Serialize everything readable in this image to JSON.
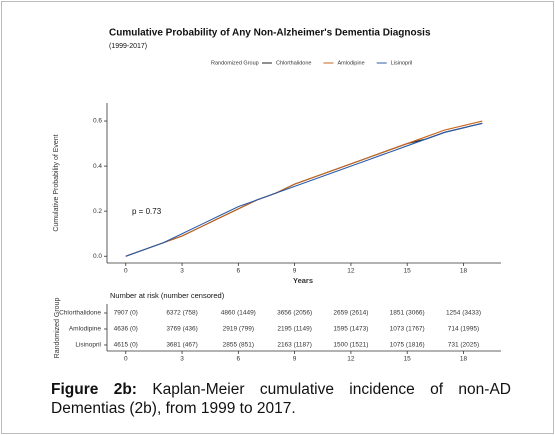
{
  "chart_data": {
    "type": "line",
    "title": "Cumulative Probability of Any Non-Alzheimer's Dementia Diagnosis",
    "subtitle": "(1999-2017)",
    "xlabel": "Years",
    "ylabel": "Cumulative Probability of Event",
    "legend_title": "Randomized Group",
    "annotation": "p = 0.73",
    "x": [
      0,
      1,
      2,
      3,
      4,
      5,
      6,
      7,
      8,
      9,
      10,
      11,
      12,
      13,
      14,
      15,
      16,
      17,
      18,
      19
    ],
    "series": [
      {
        "name": "Chlorthalidone",
        "color": "#222222",
        "values": [
          0,
          0.03,
          0.06,
          0.09,
          0.13,
          0.17,
          0.21,
          0.25,
          0.28,
          0.32,
          0.35,
          0.38,
          0.41,
          0.44,
          0.47,
          0.5,
          0.52,
          0.55,
          0.57,
          0.59
        ]
      },
      {
        "name": "Amlodipine",
        "color": "#c8651b",
        "values": [
          0,
          0.03,
          0.06,
          0.09,
          0.13,
          0.17,
          0.21,
          0.25,
          0.28,
          0.32,
          0.35,
          0.38,
          0.41,
          0.44,
          0.47,
          0.5,
          0.53,
          0.56,
          0.58,
          0.6
        ]
      },
      {
        "name": "Lisinopril",
        "color": "#2a5caa",
        "values": [
          0,
          0.03,
          0.06,
          0.1,
          0.14,
          0.18,
          0.22,
          0.25,
          0.28,
          0.31,
          0.34,
          0.37,
          0.4,
          0.43,
          0.46,
          0.49,
          0.52,
          0.55,
          0.57,
          0.59
        ]
      }
    ],
    "xlim": [
      -1,
      20
    ],
    "xticks": [
      0,
      3,
      6,
      9,
      12,
      15,
      18
    ],
    "ylim": [
      -0.03,
      0.68
    ],
    "yticks": [
      {
        "value": 0,
        "label": "0.0"
      },
      0.2,
      0.4,
      0.6
    ],
    "legend": "top"
  },
  "risk_table": {
    "title": "Number at risk (number censored)",
    "ylabel": "Randomized Group",
    "rows": [
      {
        "name": "Chlorthalidone",
        "color": "#222222",
        "cells": [
          "7907 (0)",
          "6372 (758)",
          "4860 (1449)",
          "3656 (2056)",
          "2659 (2614)",
          "1851 (3066)",
          "1254 (3433)"
        ]
      },
      {
        "name": "Amlodipine",
        "color": "#c8651b",
        "cells": [
          "4636 (0)",
          "3769 (436)",
          "2919 (799)",
          "2195 (1149)",
          "1595 (1473)",
          "1073 (1767)",
          "714 (1995)"
        ]
      },
      {
        "name": "Lisinopril",
        "color": "#2a5caa",
        "cells": [
          "4615 (0)",
          "3681 (467)",
          "2855 (851)",
          "2163 (1187)",
          "1500 (1521)",
          "1075 (1816)",
          "731 (2025)"
        ]
      }
    ]
  },
  "caption": {
    "label": "Figure 2b:",
    "text": "Kaplan-Meier cumulative incidence of non-AD Dementias (2b), from 1999 to 2017."
  }
}
